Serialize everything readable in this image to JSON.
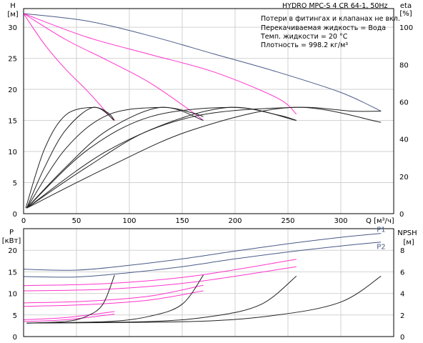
{
  "chart_data": [
    {
      "type": "line",
      "title": "HYDRO MPC-S 4 CR 64-1, 50Hz",
      "notes": [
        "Потери в фитингах и клапанах не вкл.",
        "Перекачиваемая жидкость = Вода",
        "Темп. жидкости = 20 °C",
        "Плотность = 998.2 кг/м³"
      ],
      "xlabel": "Q [м³/ч]",
      "ylabel": {
        "name": "H",
        "unit": "[м]"
      },
      "y2label": {
        "name": "eta",
        "unit": "[%]"
      },
      "xlim": [
        0,
        350
      ],
      "xticks": [
        0,
        50,
        100,
        150,
        200,
        250,
        300
      ],
      "ylim": [
        0,
        33
      ],
      "yticks": [
        0,
        5,
        10,
        15,
        20,
        25,
        30
      ],
      "y2lim": [
        0,
        110
      ],
      "y2ticks": [
        0,
        20,
        40,
        60,
        80,
        100
      ],
      "grid": true,
      "series": [
        {
          "color": "#4a5a88",
          "axis": "H",
          "x": [
            0,
            60,
            120,
            180,
            240,
            300,
            338
          ],
          "y": [
            32.2,
            31.0,
            28.6,
            25.7,
            22.8,
            19.5,
            16.5
          ]
        },
        {
          "color": "#ff33cc",
          "axis": "H",
          "x": [
            0,
            60,
            120,
            180,
            240,
            258
          ],
          "y": [
            32.2,
            28.4,
            25.6,
            22.8,
            18.6,
            16.0
          ]
        },
        {
          "color": "#ff33cc",
          "axis": "H",
          "x": [
            0,
            40,
            80,
            120,
            160,
            170
          ],
          "y": [
            32.2,
            28.0,
            24.6,
            21.0,
            16.3,
            15.0
          ]
        },
        {
          "color": "#ff33cc",
          "axis": "H",
          "x": [
            0,
            20,
            40,
            60,
            80,
            85
          ],
          "y": [
            32.2,
            27.2,
            23.2,
            19.8,
            16.0,
            15.0
          ]
        },
        {
          "color": "#222222",
          "axis": "eta",
          "x": [
            2,
            20,
            40,
            66,
            80,
            86
          ],
          "y": [
            3,
            35,
            53,
            57,
            54,
            50
          ]
        },
        {
          "color": "#222222",
          "axis": "eta",
          "x": [
            3,
            20,
            40,
            66,
            86
          ],
          "y": [
            3,
            25,
            45,
            57,
            50
          ]
        },
        {
          "color": "#222222",
          "axis": "eta",
          "x": [
            3,
            40,
            80,
            130,
            160,
            170
          ],
          "y": [
            3,
            35,
            53,
            57,
            54,
            52
          ]
        },
        {
          "color": "#222222",
          "axis": "eta",
          "x": [
            3,
            40,
            80,
            130,
            170
          ],
          "y": [
            3,
            25,
            45,
            57,
            50
          ]
        },
        {
          "color": "#222222",
          "axis": "eta",
          "x": [
            3,
            60,
            120,
            195,
            240,
            258
          ],
          "y": [
            3,
            34,
            52,
            57,
            53,
            50
          ]
        },
        {
          "color": "#222222",
          "axis": "eta",
          "x": [
            3,
            60,
            120,
            195,
            258
          ],
          "y": [
            3,
            25,
            45,
            57,
            50
          ]
        },
        {
          "color": "#222222",
          "axis": "eta",
          "x": [
            3,
            80,
            160,
            255,
            310,
            338
          ],
          "y": [
            3,
            34,
            52,
            57,
            55,
            55
          ]
        },
        {
          "color": "#222222",
          "axis": "eta",
          "x": [
            3,
            80,
            160,
            255,
            338
          ],
          "y": [
            3,
            25,
            45,
            57,
            49
          ]
        }
      ]
    },
    {
      "type": "line",
      "ylabel": {
        "name": "P",
        "unit": "[кВт]"
      },
      "y2label": {
        "name": "NPSH",
        "unit": "[м]"
      },
      "xlim": [
        0,
        350
      ],
      "ylim": [
        0,
        25
      ],
      "yticks": [
        0,
        5,
        10,
        15,
        20
      ],
      "y2lim": [
        0,
        10
      ],
      "y2ticks": [
        0,
        2,
        4,
        6,
        8
      ],
      "grid": true,
      "series": [
        {
          "name": "P1",
          "color": "#4a5a88",
          "axis": "P",
          "x": [
            0,
            50,
            100,
            150,
            200,
            250,
            300,
            338
          ],
          "y": [
            15.6,
            15.4,
            16.5,
            18.0,
            19.8,
            21.5,
            23.0,
            23.9
          ]
        },
        {
          "name": "P2",
          "color": "#4a5a88",
          "axis": "P",
          "x": [
            0,
            50,
            100,
            150,
            200,
            250,
            300,
            338
          ],
          "y": [
            13.9,
            13.8,
            14.8,
            16.2,
            18.0,
            19.6,
            21.0,
            21.9
          ]
        },
        {
          "color": "#ff33cc",
          "axis": "P",
          "x": [
            0,
            80,
            160,
            258
          ],
          "y": [
            11.8,
            12.3,
            14.0,
            17.9
          ]
        },
        {
          "color": "#ff33cc",
          "axis": "P",
          "x": [
            0,
            80,
            160,
            258
          ],
          "y": [
            10.6,
            11.0,
            12.6,
            16.2
          ]
        },
        {
          "color": "#ff33cc",
          "axis": "P",
          "x": [
            0,
            60,
            120,
            170
          ],
          "y": [
            7.8,
            8.2,
            9.4,
            11.9
          ]
        },
        {
          "color": "#ff33cc",
          "axis": "P",
          "x": [
            0,
            60,
            120,
            170
          ],
          "y": [
            7.0,
            7.4,
            8.5,
            10.6
          ]
        },
        {
          "color": "#ff33cc",
          "axis": "P",
          "x": [
            0,
            40,
            86
          ],
          "y": [
            3.9,
            4.4,
            5.8
          ]
        },
        {
          "color": "#ff33cc",
          "axis": "P",
          "x": [
            0,
            40,
            86
          ],
          "y": [
            3.5,
            3.9,
            5.2
          ]
        },
        {
          "color": "#222222",
          "axis": "NPSH",
          "x": [
            3,
            40,
            60,
            75,
            86
          ],
          "y": [
            1.25,
            1.4,
            1.9,
            3.0,
            5.7
          ]
        },
        {
          "color": "#222222",
          "axis": "NPSH",
          "x": [
            3,
            80,
            120,
            150,
            170
          ],
          "y": [
            1.25,
            1.4,
            1.9,
            3.0,
            5.7
          ]
        },
        {
          "color": "#222222",
          "axis": "NPSH",
          "x": [
            3,
            120,
            180,
            225,
            258
          ],
          "y": [
            1.25,
            1.4,
            1.9,
            3.0,
            5.6
          ]
        },
        {
          "color": "#222222",
          "axis": "NPSH",
          "x": [
            3,
            160,
            240,
            300,
            338
          ],
          "y": [
            1.25,
            1.4,
            2.0,
            3.2,
            5.6
          ]
        }
      ]
    }
  ]
}
